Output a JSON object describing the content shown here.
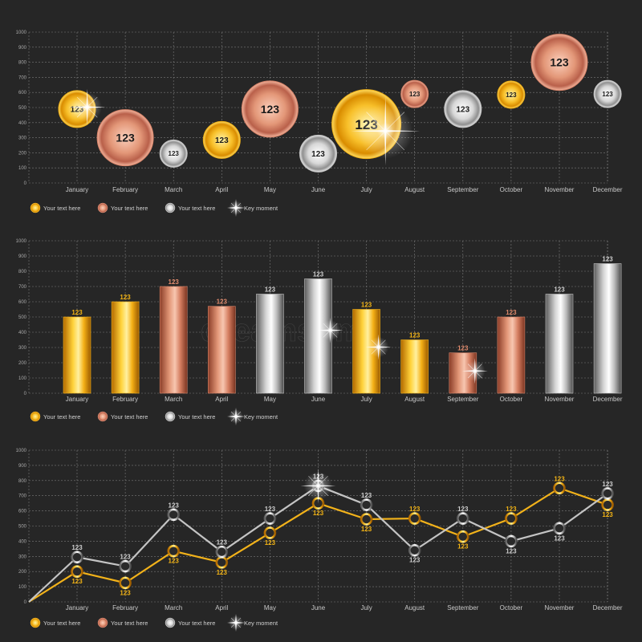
{
  "colors": {
    "background": "#262626",
    "gold": "#f2b21a",
    "copper": "#d7846a",
    "silver": "#c4c4c4",
    "grid": "#7a7a7a",
    "gold_text": "#f4b414",
    "copper_text": "#e08a6c",
    "silver_text": "#cfcfcf"
  },
  "watermark": "dreamstime",
  "chart_data": [
    {
      "type": "scatter",
      "subtype": "bubble",
      "categories": [
        "January",
        "February",
        "March",
        "April",
        "May",
        "June",
        "July",
        "August",
        "September",
        "October",
        "November",
        "December"
      ],
      "ylim": [
        0,
        1000
      ],
      "yticks": [
        "0",
        "100",
        "200",
        "300",
        "400",
        "500",
        "600",
        "700",
        "800",
        "900",
        "1000"
      ],
      "grid": true,
      "points": [
        {
          "x": "January",
          "y": 490,
          "size": "medium",
          "material": "gold",
          "label": "123",
          "sparkle": true
        },
        {
          "x": "February",
          "y": 300,
          "size": "large",
          "material": "copper",
          "label": "123"
        },
        {
          "x": "March",
          "y": 195,
          "size": "small",
          "material": "silver",
          "label": "123"
        },
        {
          "x": "April",
          "y": 285,
          "size": "medium",
          "material": "gold",
          "label": "123"
        },
        {
          "x": "May",
          "y": 490,
          "size": "large",
          "material": "copper",
          "label": "123"
        },
        {
          "x": "June",
          "y": 195,
          "size": "medium",
          "material": "silver",
          "label": "123"
        },
        {
          "x": "July",
          "y": 390,
          "size": "xlarge",
          "material": "gold",
          "label": "123",
          "sparkle": true
        },
        {
          "x": "August",
          "y": 590,
          "size": "small",
          "material": "copper",
          "label": "123"
        },
        {
          "x": "September",
          "y": 490,
          "size": "medium",
          "material": "silver",
          "label": "123"
        },
        {
          "x": "October",
          "y": 585,
          "size": "small",
          "material": "gold",
          "label": "123"
        },
        {
          "x": "November",
          "y": 800,
          "size": "large",
          "material": "copper",
          "label": "123"
        },
        {
          "x": "December",
          "y": 590,
          "size": "small",
          "material": "silver",
          "label": "123"
        }
      ],
      "legend": [
        "Your text here",
        "Your text here",
        "Your text here",
        "Key moment"
      ],
      "legend_position": "bottom-left"
    },
    {
      "type": "bar",
      "categories": [
        "January",
        "February",
        "March",
        "April",
        "May",
        "June",
        "July",
        "August",
        "September",
        "October",
        "November",
        "December"
      ],
      "values": [
        500,
        600,
        700,
        570,
        650,
        750,
        550,
        350,
        265,
        500,
        650,
        850
      ],
      "materials": [
        "gold",
        "gold",
        "copper",
        "copper",
        "silver",
        "silver",
        "gold",
        "gold",
        "copper",
        "copper",
        "silver",
        "silver"
      ],
      "labels": [
        "123",
        "123",
        "123",
        "123",
        "123",
        "123",
        "123",
        "123",
        "123",
        "123",
        "123",
        "123"
      ],
      "ylim": [
        0,
        1000
      ],
      "yticks": [
        "0",
        "100",
        "200",
        "300",
        "400",
        "500",
        "600",
        "700",
        "800",
        "900",
        "1000"
      ],
      "grid": true,
      "sparkles": [
        "June",
        "July",
        "September"
      ],
      "legend": [
        "Your text here",
        "Your text here",
        "Your text here",
        "Key moment"
      ],
      "legend_position": "bottom-left"
    },
    {
      "type": "line",
      "categories": [
        "January",
        "February",
        "March",
        "April",
        "May",
        "June",
        "July",
        "August",
        "September",
        "October",
        "November",
        "December"
      ],
      "ylim": [
        0,
        1000
      ],
      "yticks": [
        "0",
        "100",
        "200",
        "300",
        "400",
        "500",
        "600",
        "700",
        "800",
        "900",
        "1000"
      ],
      "grid": true,
      "origin": 0,
      "series": [
        {
          "material": "gold",
          "values": [
            200,
            125,
            335,
            260,
            455,
            650,
            545,
            550,
            430,
            550,
            750,
            640
          ],
          "labels": [
            "123",
            "123",
            "123",
            "123",
            "123",
            "123",
            "123",
            "123",
            "123",
            "123",
            "123",
            "123"
          ]
        },
        {
          "material": "silver",
          "values": [
            295,
            235,
            575,
            330,
            550,
            765,
            640,
            340,
            550,
            400,
            485,
            715
          ],
          "labels": [
            "123",
            "123",
            "123",
            "123",
            "123",
            "123",
            "123",
            "123",
            "123",
            "123",
            "123",
            "123"
          ]
        }
      ],
      "sparkles": [
        "June"
      ],
      "legend": [
        "Your text here",
        "Your text here",
        "Your text here",
        "Key moment"
      ],
      "legend_position": "bottom-left"
    }
  ]
}
